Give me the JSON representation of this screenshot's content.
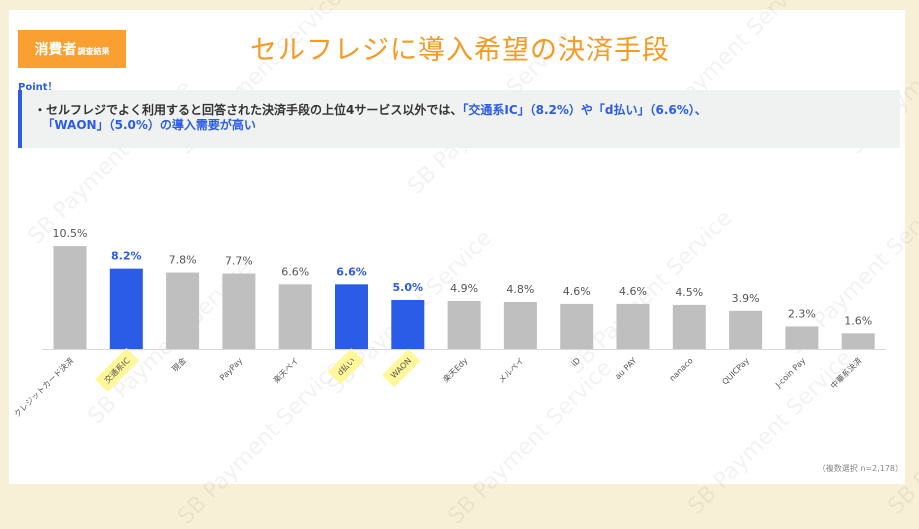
{
  "badge": {
    "main": "消費者",
    "sub": "調査結果"
  },
  "title": "セルフレジに導入希望の決済手段",
  "point_label": "Point！",
  "summary": {
    "prefix": "・セルフレジでよく利用すると回答された決済手段の上位4サービス以外では、",
    "h1": "「交通系IC」（8.2%）や「d払い」（6.6%）、",
    "h2": "「WAON」（5.0%）",
    "suffix": "の導入需要が高い"
  },
  "watermark": "SB Payment Service",
  "note": "（複数選択 n=2,178）",
  "colors": {
    "highlight": "#2a5ce8",
    "default": "#bfbfbf",
    "label_highlight": "#fff799",
    "accent": "#f59a23"
  },
  "chart_data": {
    "type": "bar",
    "categories": [
      "クレジットカード決済",
      "交通系IC",
      "現金",
      "PayPay",
      "楽天ペイ",
      "d払い",
      "WAON",
      "楽天Edy",
      "メルペイ",
      "iD",
      "au PAY",
      "nanaco",
      "QUICPay",
      "J-coin Pay",
      "中華系決済"
    ],
    "values": [
      10.5,
      8.2,
      7.8,
      7.7,
      6.6,
      6.6,
      5.0,
      4.9,
      4.8,
      4.6,
      4.6,
      4.5,
      3.9,
      2.3,
      1.6
    ],
    "value_labels": [
      "10.5%",
      "8.2%",
      "7.8%",
      "7.7%",
      "6.6%",
      "6.6%",
      "5.0%",
      "4.9%",
      "4.8%",
      "4.6%",
      "4.6%",
      "4.5%",
      "3.9%",
      "2.3%",
      "1.6%"
    ],
    "highlighted": [
      false,
      true,
      false,
      false,
      false,
      true,
      true,
      false,
      false,
      false,
      false,
      false,
      false,
      false,
      false
    ],
    "unit": "%",
    "ylim": [
      0,
      11
    ],
    "grid": false
  }
}
